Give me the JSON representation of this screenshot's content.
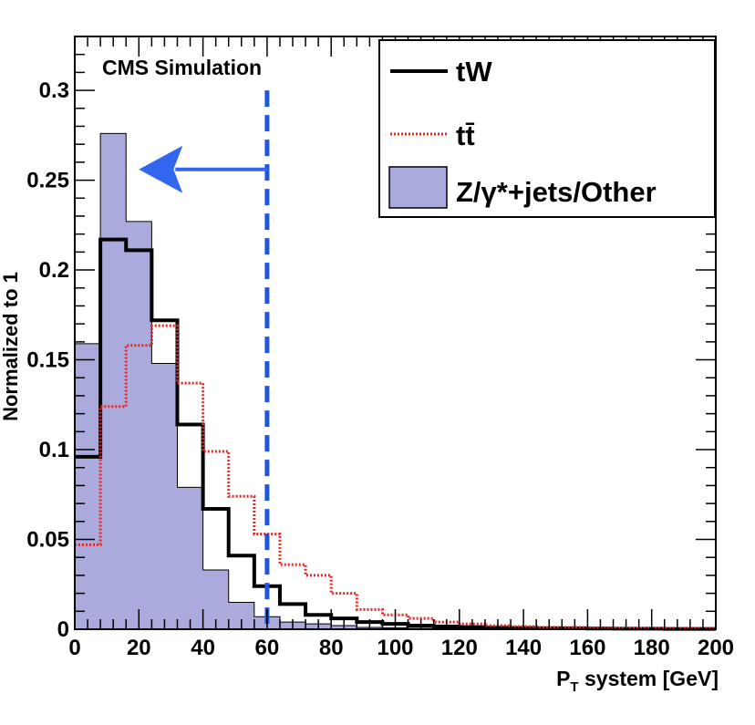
{
  "chart_data": {
    "type": "histogram",
    "title": "CMS Simulation",
    "xlabel": "P",
    "xlabel_sub": "T",
    "xlabel_rest": " system [GeV]",
    "ylabel": "Normalized to 1",
    "xlim": [
      0,
      200
    ],
    "ylim": [
      0,
      0.33
    ],
    "bin_width": 8,
    "x_ticks": [
      0,
      20,
      40,
      60,
      80,
      100,
      120,
      140,
      160,
      180,
      200
    ],
    "x_tick_labels": [
      "0",
      "20",
      "40",
      "60",
      "80",
      "100",
      "120",
      "140",
      "160",
      "180",
      "200"
    ],
    "y_ticks": [
      0,
      0.05,
      0.1,
      0.15,
      0.2,
      0.25,
      0.3
    ],
    "y_tick_labels": [
      "0",
      "0.05",
      "0.1",
      "0.15",
      "0.2",
      "0.25",
      "0.3"
    ],
    "cut_value": 60,
    "arrow": {
      "from_x": 60,
      "to_x": 20,
      "y": 0.256
    },
    "series": [
      {
        "name": "Z/γ*+jets/Other",
        "style": "filled",
        "color": "#aaaadd",
        "values": [
          0.159,
          0.276,
          0.227,
          0.148,
          0.079,
          0.033,
          0.015,
          0.007,
          0.004,
          0.003,
          0.002,
          0.001,
          0.0008,
          0.0005,
          0.0004,
          0.0003,
          0.0002,
          0.0002,
          0.0001,
          0.0001,
          0.0001,
          0.0001,
          0.0001,
          0.0001,
          0.0001
        ]
      },
      {
        "name": "tW",
        "style": "solid",
        "color": "#000000",
        "values": [
          0.096,
          0.217,
          0.211,
          0.172,
          0.114,
          0.067,
          0.041,
          0.024,
          0.014,
          0.008,
          0.006,
          0.004,
          0.003,
          0.002,
          0.0015,
          0.0012,
          0.0009,
          0.0007,
          0.0006,
          0.0005,
          0.0004,
          0.0003,
          0.0003,
          0.0002,
          0.0002
        ]
      },
      {
        "name": "tt̄",
        "style": "dotted",
        "color": "#ee2222",
        "values": [
          0.047,
          0.124,
          0.158,
          0.169,
          0.137,
          0.099,
          0.074,
          0.053,
          0.036,
          0.03,
          0.02,
          0.011,
          0.008,
          0.006,
          0.004,
          0.003,
          0.002,
          0.0015,
          0.001,
          0.001,
          0.0008,
          0.0006,
          0.0005,
          0.0004,
          0.0003
        ]
      }
    ],
    "legend": [
      {
        "label": "tW",
        "style": "solid"
      },
      {
        "label": "tt̄",
        "style": "dotted"
      },
      {
        "label": "Z/γ*+jets/Other",
        "style": "filled"
      }
    ],
    "colors": {
      "fill": "#aaaadd",
      "tW": "#000000",
      "ttbar": "#ee2222",
      "cut": "#2255dd",
      "arrow": "#3366ee"
    }
  }
}
